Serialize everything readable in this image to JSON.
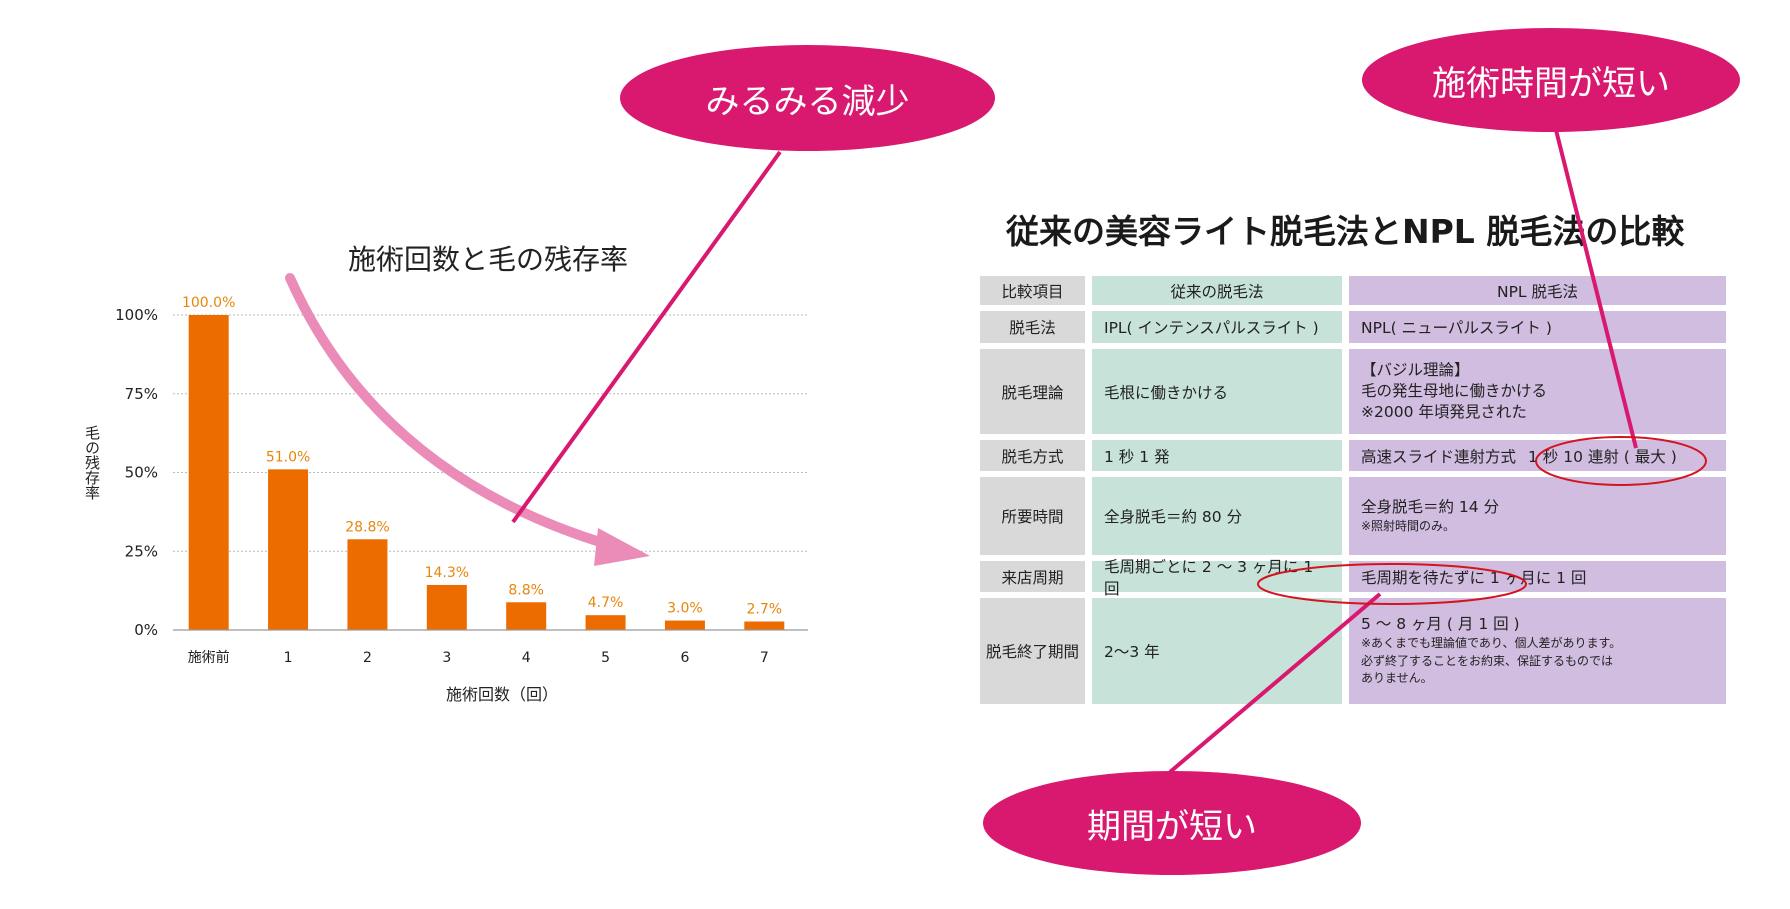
{
  "callouts": {
    "rapid_decrease": "みるみる減少",
    "short_treatment": "施術時間が短い",
    "short_period": "期間が短い"
  },
  "chart_data": {
    "type": "bar",
    "title": "施術回数と毛の残存率",
    "xlabel": "施術回数（回）",
    "ylabel": "毛の残存率",
    "categories": [
      "施術前",
      "1",
      "2",
      "3",
      "4",
      "5",
      "6",
      "7"
    ],
    "values": [
      100.0,
      51.0,
      28.8,
      14.3,
      8.8,
      4.7,
      3.0,
      2.7
    ],
    "value_labels": [
      "100.0%",
      "51.0%",
      "28.8%",
      "14.3%",
      "8.8%",
      "4.7%",
      "3.0%",
      "2.7%"
    ],
    "ylim": [
      0,
      100
    ],
    "yticks": [
      "0%",
      "25%",
      "50%",
      "75%",
      "100%"
    ],
    "grid": true,
    "bar_color": "#ec6c00",
    "label_color": "#e8860c"
  },
  "table": {
    "title": "従来の美容ライト脱毛法とNPL 脱毛法の比較",
    "header": [
      "比較項目",
      "従来の脱毛法",
      "NPL 脱毛法"
    ],
    "rows": [
      {
        "label": "脱毛法",
        "conventional": [
          "IPL( インテンスパルスライト )"
        ],
        "npl": [
          "NPL( ニューパルスライト )"
        ]
      },
      {
        "label": "脱毛理論",
        "conventional": [
          "毛根に働きかける"
        ],
        "npl": [
          "【バジル理論】",
          "毛の発生母地に働きかける",
          "※2000 年頃発見された"
        ]
      },
      {
        "label": "脱毛方式",
        "conventional": [
          "1 秒 1 発"
        ],
        "npl": [
          "高速スライド連射方式",
          "1 秒 10 連射 ( 最大 )"
        ]
      },
      {
        "label": "所要時間",
        "conventional": [
          "全身脱毛＝約 80 分"
        ],
        "npl": [
          "全身脱毛＝約 14 分",
          "※照射時間のみ。"
        ]
      },
      {
        "label": "来店周期",
        "conventional": [
          "毛周期ごとに 2 〜 3 ヶ月に 1 回"
        ],
        "npl": [
          "毛周期を待たずに 1 ヶ月に 1 回"
        ]
      },
      {
        "label": "脱毛終了期間",
        "conventional": [
          "2〜3 年"
        ],
        "npl": [
          "5 〜 8 ヶ月 ( 月 1 回 )",
          "※あくまでも理論値であり、個人差があります。",
          "必ず終了することをお約束、保証するものでは",
          "ありません。"
        ]
      }
    ]
  },
  "colors": {
    "callout": "#d9186f",
    "pointer_line": "#d9186f",
    "trend_arrow": "#eb8cb8",
    "conventional_bg": "#c7e3d9",
    "npl_bg": "#d0bde0",
    "label_bg": "#d9d9d9",
    "highlight_ellipse": "#d4141e"
  }
}
